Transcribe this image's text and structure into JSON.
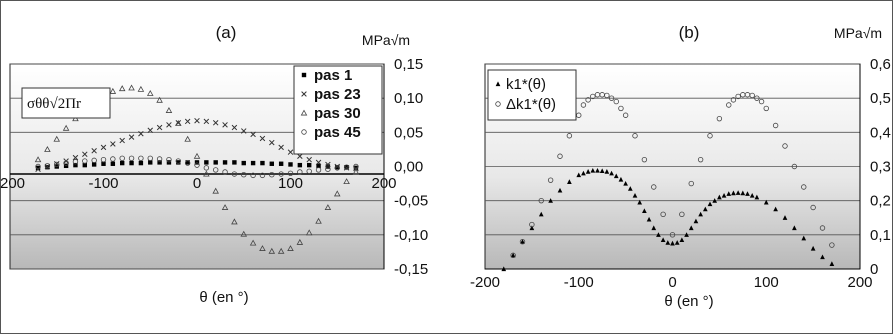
{
  "panels": [
    {
      "label": "(a)",
      "unit": "MPa√m",
      "xlabel": "θ (en °)",
      "quantity": "σθθ√2Πr",
      "x_ticks": [
        "-200",
        "-100",
        "0",
        "100",
        "200"
      ],
      "y_ticks": [
        "0,15",
        "0,10",
        "0,05",
        "0,00",
        "-0,05",
        "-0,10",
        "-0,15"
      ],
      "legend": [
        "pas   1",
        "pas 23",
        "pas 30",
        "pas 45"
      ]
    },
    {
      "label": "(b)",
      "unit": "MPa√m",
      "xlabel": "θ (en °)",
      "x_ticks": [
        "-200",
        "-100",
        "0",
        "100",
        "200"
      ],
      "y_ticks": [
        "0,6",
        "0,5",
        "0,4",
        "0,3",
        "0,2",
        "0,1",
        "0"
      ],
      "legend": [
        "k1*(θ)",
        "Δk1*(θ)"
      ]
    }
  ],
  "chart_data": [
    {
      "type": "scatter",
      "title": "(a)",
      "ylabel": "MPa√m",
      "xlabel": "θ (en °)",
      "xlim": [
        -200,
        200
      ],
      "ylim": [
        -0.15,
        0.15
      ],
      "grid": true,
      "legend_position": "top-right",
      "series": [
        {
          "name": "pas   1",
          "marker": "square",
          "x": [
            -170,
            -160,
            -150,
            -140,
            -130,
            -120,
            -110,
            -100,
            -90,
            -80,
            -70,
            -60,
            -50,
            -40,
            -30,
            -20,
            -10,
            0,
            10,
            20,
            30,
            40,
            50,
            60,
            70,
            80,
            90,
            100,
            110,
            120,
            130,
            140,
            150,
            160,
            170
          ],
          "y": [
            -0.002,
            -0.001,
            0,
            0.001,
            0.002,
            0.002,
            0.003,
            0.004,
            0.004,
            0.005,
            0.005,
            0.005,
            0.006,
            0.006,
            0.006,
            0.006,
            0.006,
            0.006,
            0.006,
            0.006,
            0.006,
            0.006,
            0.005,
            0.005,
            0.005,
            0.004,
            0.004,
            0.003,
            0.002,
            0.002,
            0.001,
            0,
            -0.001,
            -0.001,
            -0.002
          ]
        },
        {
          "name": "pas 23",
          "marker": "x",
          "x": [
            -170,
            -160,
            -150,
            -140,
            -130,
            -120,
            -110,
            -100,
            -90,
            -80,
            -70,
            -60,
            -50,
            -40,
            -30,
            -20,
            -10,
            0,
            10,
            20,
            30,
            40,
            50,
            60,
            70,
            80,
            90,
            100,
            110,
            120,
            130,
            140,
            150,
            160,
            170
          ],
          "y": [
            -0.004,
            0,
            0.004,
            0.008,
            0.013,
            0.018,
            0.023,
            0.028,
            0.033,
            0.038,
            0.043,
            0.048,
            0.053,
            0.057,
            0.061,
            0.064,
            0.066,
            0.067,
            0.066,
            0.064,
            0.061,
            0.057,
            0.052,
            0.047,
            0.041,
            0.035,
            0.028,
            0.021,
            0.015,
            0.01,
            0.006,
            0.003,
            0,
            -0.002,
            -0.003
          ]
        },
        {
          "name": "pas 30",
          "marker": "triangle",
          "x": [
            -170,
            -160,
            -150,
            -140,
            -130,
            -120,
            -110,
            -100,
            -90,
            -80,
            -70,
            -60,
            -50,
            -40,
            -30,
            -20,
            -10,
            0,
            10,
            20,
            30,
            40,
            50,
            60,
            70,
            80,
            90,
            100,
            110,
            120,
            130,
            140,
            150,
            160,
            170
          ],
          "y": [
            0.01,
            0.025,
            0.04,
            0.056,
            0.07,
            0.083,
            0.094,
            0.104,
            0.11,
            0.114,
            0.115,
            0.113,
            0.107,
            0.097,
            0.082,
            0.063,
            0.04,
            0.015,
            -0.011,
            -0.036,
            -0.06,
            -0.081,
            -0.099,
            -0.112,
            -0.12,
            -0.124,
            -0.124,
            -0.12,
            -0.111,
            -0.097,
            -0.08,
            -0.06,
            -0.04,
            -0.022,
            -0.008
          ]
        },
        {
          "name": "pas 45",
          "marker": "circle",
          "x": [
            -170,
            -160,
            -150,
            -140,
            -130,
            -120,
            -110,
            -100,
            -90,
            -80,
            -70,
            -60,
            -50,
            -40,
            -30,
            -20,
            -10,
            0,
            10,
            20,
            30,
            40,
            50,
            60,
            70,
            80,
            90,
            100,
            110,
            120,
            130,
            140,
            150,
            160,
            170
          ],
          "y": [
            0,
            0.001,
            0.003,
            0.005,
            0.007,
            0.008,
            0.009,
            0.01,
            0.011,
            0.012,
            0.012,
            0.012,
            0.012,
            0.011,
            0.01,
            0.008,
            0.005,
            0.002,
            -0.002,
            -0.005,
            -0.008,
            -0.011,
            -0.012,
            -0.013,
            -0.013,
            -0.012,
            -0.011,
            -0.01,
            -0.008,
            -0.007,
            -0.005,
            -0.004,
            -0.002,
            -0.001,
            0
          ]
        }
      ]
    },
    {
      "type": "scatter",
      "title": "(b)",
      "ylabel": "MPa√m",
      "xlabel": "θ (en °)",
      "xlim": [
        -200,
        200
      ],
      "ylim": [
        0,
        0.6
      ],
      "grid": true,
      "legend_position": "top-left",
      "series": [
        {
          "name": "k1*(θ)",
          "marker": "triangle-filled",
          "x": [
            -180,
            -170,
            -160,
            -150,
            -140,
            -130,
            -120,
            -110,
            -100,
            -95,
            -90,
            -85,
            -80,
            -75,
            -70,
            -65,
            -60,
            -55,
            -50,
            -45,
            -40,
            -35,
            -30,
            -25,
            -20,
            -15,
            -10,
            -5,
            0,
            5,
            10,
            15,
            20,
            25,
            30,
            35,
            40,
            45,
            50,
            55,
            60,
            65,
            70,
            75,
            80,
            85,
            90,
            100,
            110,
            120,
            130,
            140,
            150,
            160,
            170
          ],
          "y": [
            0,
            0.04,
            0.08,
            0.12,
            0.16,
            0.2,
            0.23,
            0.255,
            0.275,
            0.28,
            0.285,
            0.288,
            0.288,
            0.287,
            0.285,
            0.28,
            0.272,
            0.262,
            0.25,
            0.235,
            0.215,
            0.195,
            0.17,
            0.145,
            0.12,
            0.1,
            0.085,
            0.077,
            0.075,
            0.077,
            0.085,
            0.1,
            0.12,
            0.14,
            0.16,
            0.175,
            0.19,
            0.2,
            0.21,
            0.215,
            0.22,
            0.222,
            0.223,
            0.222,
            0.22,
            0.215,
            0.21,
            0.195,
            0.175,
            0.15,
            0.12,
            0.09,
            0.06,
            0.035,
            0.015
          ]
        },
        {
          "name": "Δk1*(θ)",
          "marker": "circle",
          "x": [
            -170,
            -160,
            -150,
            -140,
            -130,
            -120,
            -110,
            -100,
            -95,
            -90,
            -85,
            -80,
            -75,
            -70,
            -65,
            -60,
            -55,
            -50,
            -40,
            -30,
            -20,
            -10,
            0,
            10,
            20,
            30,
            40,
            50,
            60,
            65,
            70,
            75,
            80,
            85,
            90,
            95,
            100,
            110,
            120,
            130,
            140,
            150,
            160,
            170
          ],
          "y": [
            0.04,
            0.08,
            0.13,
            0.2,
            0.26,
            0.33,
            0.39,
            0.45,
            0.48,
            0.495,
            0.505,
            0.51,
            0.51,
            0.508,
            0.5,
            0.49,
            0.47,
            0.45,
            0.39,
            0.32,
            0.24,
            0.16,
            0.1,
            0.16,
            0.25,
            0.32,
            0.39,
            0.44,
            0.48,
            0.495,
            0.505,
            0.51,
            0.51,
            0.508,
            0.5,
            0.49,
            0.47,
            0.42,
            0.36,
            0.3,
            0.24,
            0.18,
            0.12,
            0.07
          ]
        }
      ]
    }
  ]
}
